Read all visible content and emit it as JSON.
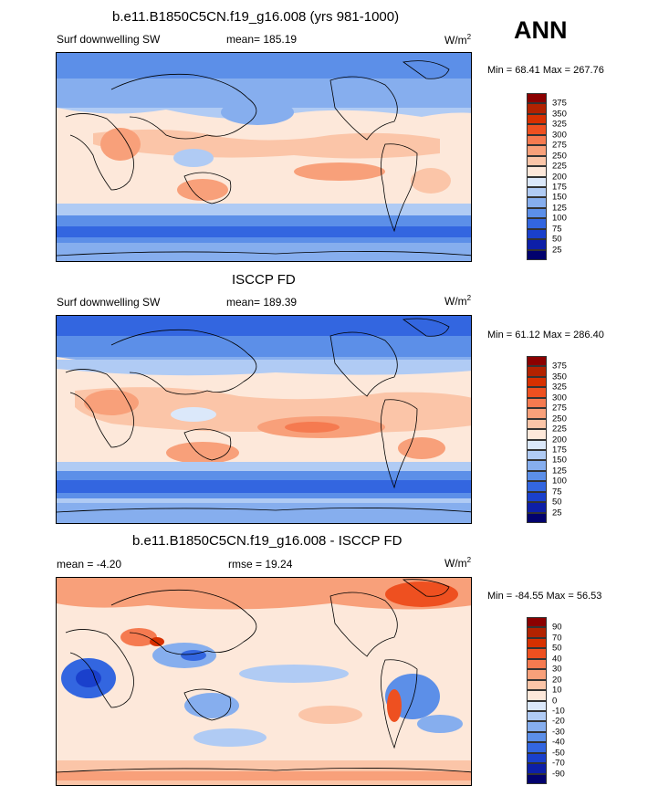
{
  "corner_label": "ANN",
  "panels": [
    {
      "title": "b.e11.B1850C5CN.f19_g16.008 (yrs 981-1000)",
      "left_label": "Surf downwelling SW",
      "center_label": "mean= 185.19",
      "units": "W/m",
      "units_sup": "2",
      "minmax": "Min =  68.41 Max = 267.76",
      "colorbar_levels": [
        "375",
        "350",
        "325",
        "300",
        "275",
        "250",
        "225",
        "200",
        "175",
        "150",
        "125",
        "100",
        "75",
        "50",
        "25"
      ],
      "colorbar_colors": [
        "#8b0000",
        "#b22200",
        "#d73000",
        "#ee5020",
        "#f57a50",
        "#f8a07a",
        "#fbc5a8",
        "#fde8da",
        "#dbe8fa",
        "#b0cbf4",
        "#86aeee",
        "#5c8fe8",
        "#3366e0",
        "#1a40cc",
        "#0d1fa8",
        "#02026e"
      ]
    },
    {
      "title": "ISCCP FD",
      "left_label": "Surf downwelling SW",
      "center_label": "mean= 189.39",
      "units": "W/m",
      "units_sup": "2",
      "minmax": "Min =  61.12 Max = 286.40",
      "colorbar_levels": [
        "375",
        "350",
        "325",
        "300",
        "275",
        "250",
        "225",
        "200",
        "175",
        "150",
        "125",
        "100",
        "75",
        "50",
        "25"
      ],
      "colorbar_colors": [
        "#8b0000",
        "#b22200",
        "#d73000",
        "#ee5020",
        "#f57a50",
        "#f8a07a",
        "#fbc5a8",
        "#fde8da",
        "#dbe8fa",
        "#b0cbf4",
        "#86aeee",
        "#5c8fe8",
        "#3366e0",
        "#1a40cc",
        "#0d1fa8",
        "#02026e"
      ]
    },
    {
      "title": "b.e11.B1850C5CN.f19_g16.008 - ISCCP FD",
      "left_label": "mean =  -4.20",
      "center_label": "rmse =  19.24",
      "units": "W/m",
      "units_sup": "2",
      "minmax": "Min = -84.55 Max =  56.53",
      "colorbar_levels": [
        "90",
        "70",
        "50",
        "40",
        "30",
        "20",
        "10",
        "0",
        "-10",
        "-20",
        "-30",
        "-40",
        "-50",
        "-70",
        "-90"
      ],
      "colorbar_colors": [
        "#8b0000",
        "#b22200",
        "#d73000",
        "#ee5020",
        "#f57a50",
        "#f8a07a",
        "#fbc5a8",
        "#fde8da",
        "#dbe8fa",
        "#b0cbf4",
        "#86aeee",
        "#5c8fe8",
        "#3366e0",
        "#1a40cc",
        "#0d1fa8",
        "#02026e"
      ]
    }
  ]
}
